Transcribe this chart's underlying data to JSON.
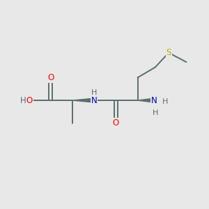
{
  "background_color": "#e8e8e8",
  "bond_color": "#5a6e6e",
  "atom_colors": {
    "O": "#ff0000",
    "N": "#0000bb",
    "S": "#bbaa00",
    "H": "#5a6e6e"
  },
  "figsize": [
    3.0,
    3.0
  ],
  "dpi": 100,
  "lw": 1.4,
  "fs": 8.5
}
